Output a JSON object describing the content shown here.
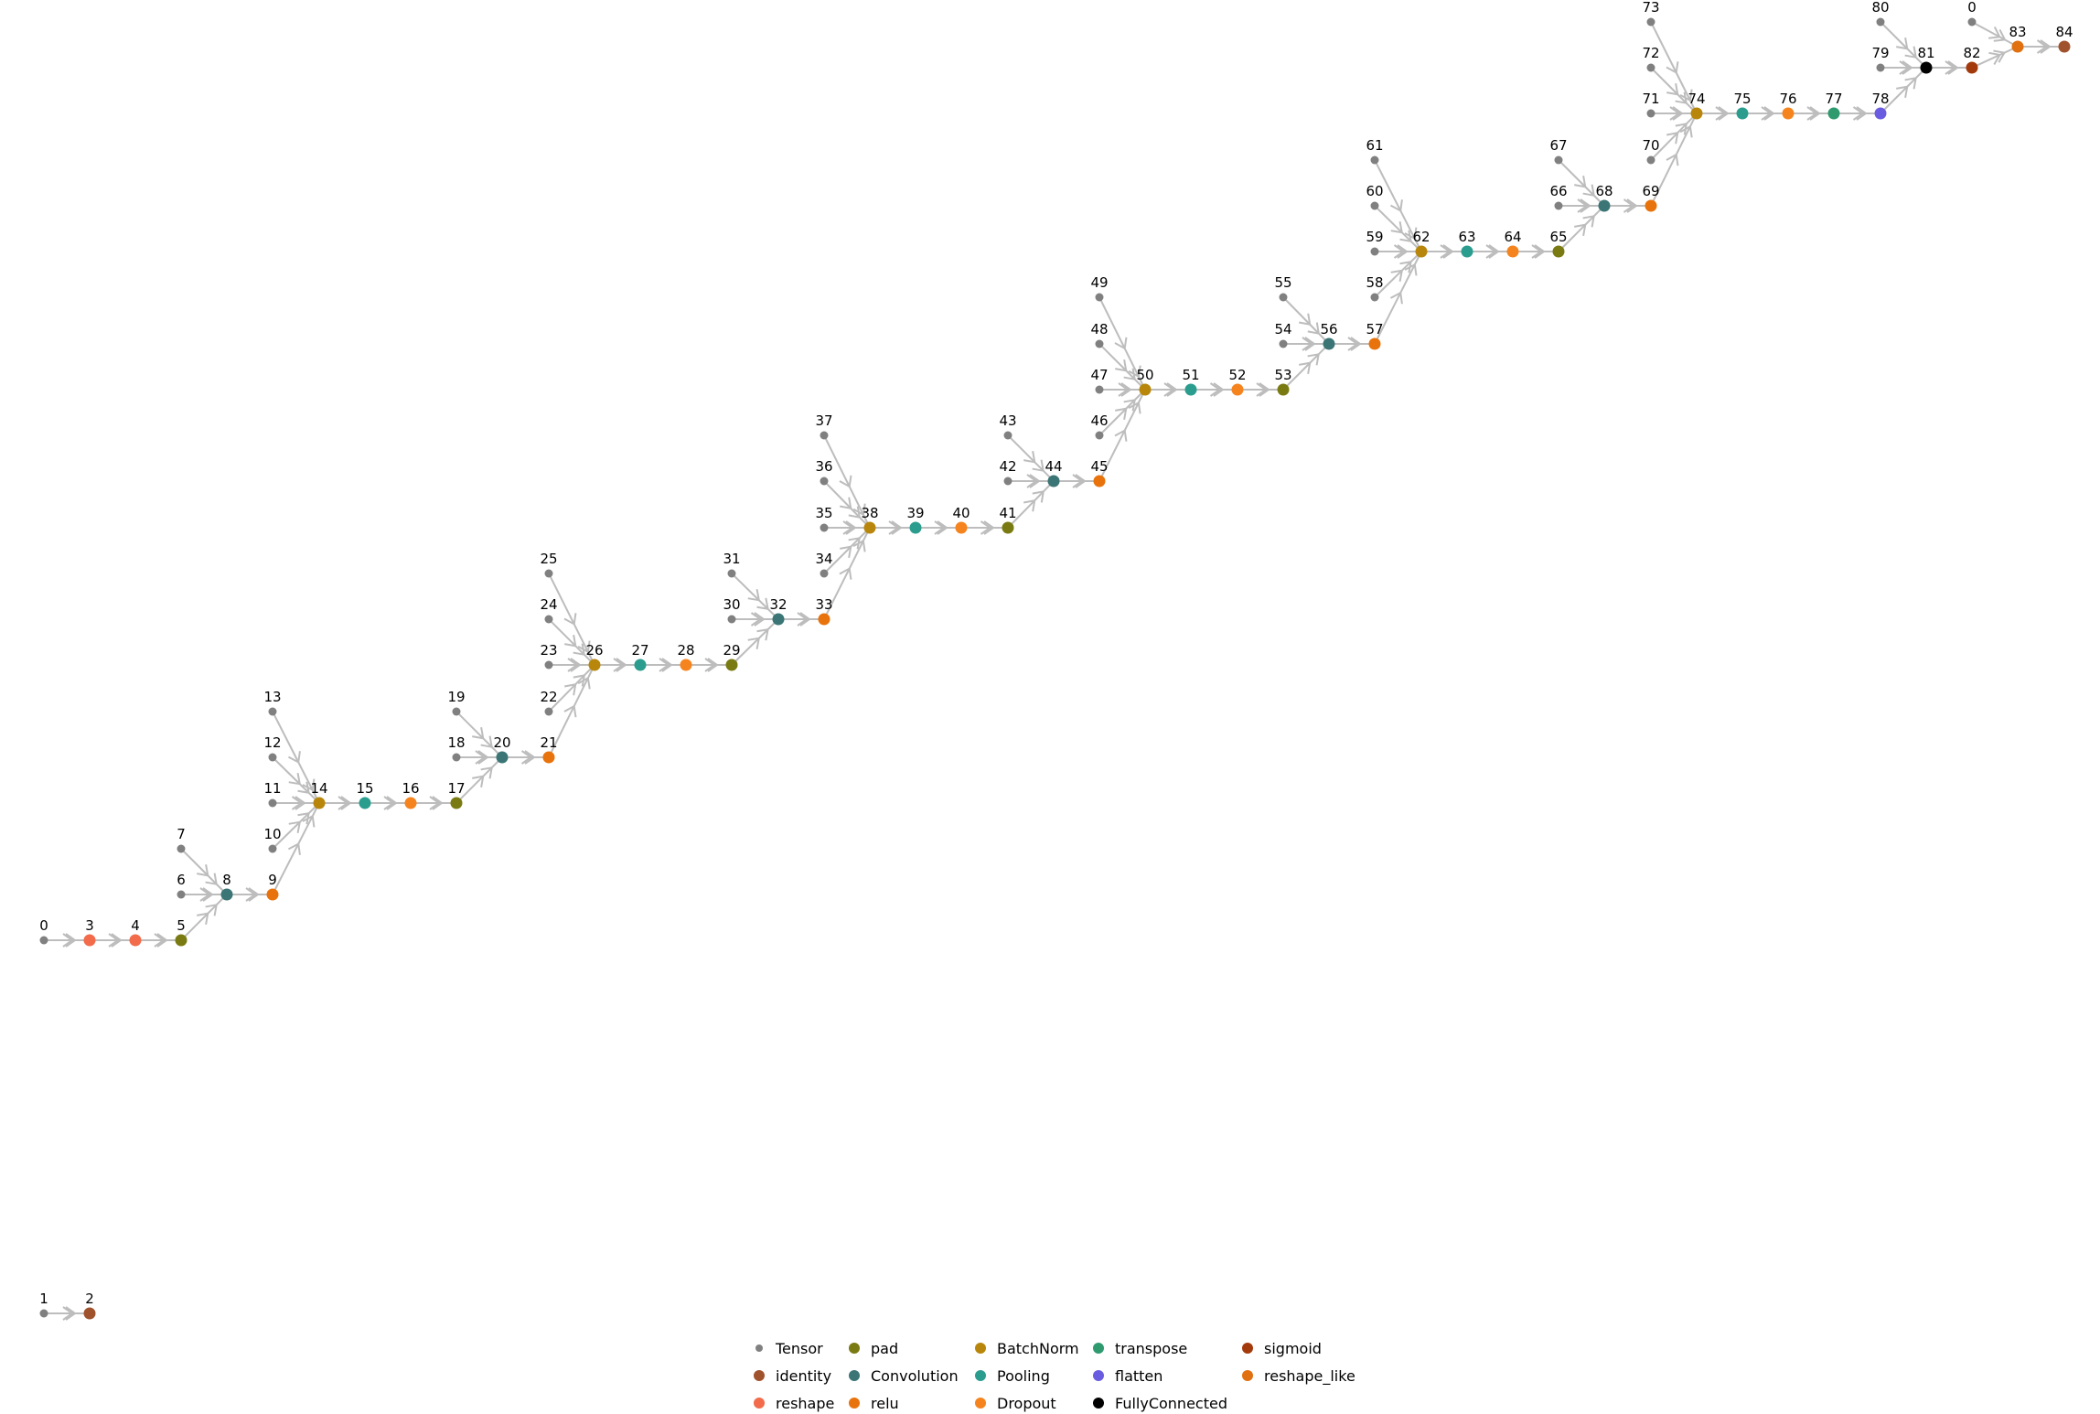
{
  "diagram": {
    "type": "directed-graph",
    "legend": [
      {
        "name": "Tensor",
        "color": "#808080"
      },
      {
        "name": "identity",
        "color": "#a0522d"
      },
      {
        "name": "reshape",
        "color": "#f26b4a"
      },
      {
        "name": "pad",
        "color": "#7a7a12"
      },
      {
        "name": "Convolution",
        "color": "#3b7575"
      },
      {
        "name": "relu",
        "color": "#e8730c"
      },
      {
        "name": "BatchNorm",
        "color": "#b8860b"
      },
      {
        "name": "Pooling",
        "color": "#2a9d8f"
      },
      {
        "name": "Dropout",
        "color": "#f5841f"
      },
      {
        "name": "transpose",
        "color": "#2e9a6e"
      },
      {
        "name": "flatten",
        "color": "#6a5ce0"
      },
      {
        "name": "FullyConnected",
        "color": "#000000"
      },
      {
        "name": "sigmoid",
        "color": "#a33a0c"
      },
      {
        "name": "reshape_like",
        "color": "#e07010"
      }
    ],
    "nodes": [
      {
        "id": "0a",
        "label": "0",
        "type": "Tensor"
      },
      {
        "id": "3",
        "label": "3",
        "type": "reshape"
      },
      {
        "id": "4",
        "label": "4",
        "type": "reshape"
      },
      {
        "id": "5",
        "label": "5",
        "type": "pad"
      },
      {
        "id": "6",
        "label": "6",
        "type": "Tensor"
      },
      {
        "id": "7",
        "label": "7",
        "type": "Tensor"
      },
      {
        "id": "8",
        "label": "8",
        "type": "Convolution"
      },
      {
        "id": "9",
        "label": "9",
        "type": "relu"
      },
      {
        "id": "10",
        "label": "10",
        "type": "Tensor"
      },
      {
        "id": "11",
        "label": "11",
        "type": "Tensor"
      },
      {
        "id": "12",
        "label": "12",
        "type": "Tensor"
      },
      {
        "id": "13",
        "label": "13",
        "type": "Tensor"
      },
      {
        "id": "14",
        "label": "14",
        "type": "BatchNorm"
      },
      {
        "id": "15",
        "label": "15",
        "type": "Pooling"
      },
      {
        "id": "16",
        "label": "16",
        "type": "Dropout"
      },
      {
        "id": "17",
        "label": "17",
        "type": "pad"
      },
      {
        "id": "18",
        "label": "18",
        "type": "Tensor"
      },
      {
        "id": "19",
        "label": "19",
        "type": "Tensor"
      },
      {
        "id": "20",
        "label": "20",
        "type": "Convolution"
      },
      {
        "id": "21",
        "label": "21",
        "type": "relu"
      },
      {
        "id": "22",
        "label": "22",
        "type": "Tensor"
      },
      {
        "id": "23",
        "label": "23",
        "type": "Tensor"
      },
      {
        "id": "24",
        "label": "24",
        "type": "Tensor"
      },
      {
        "id": "25",
        "label": "25",
        "type": "Tensor"
      },
      {
        "id": "26",
        "label": "26",
        "type": "BatchNorm"
      },
      {
        "id": "27",
        "label": "27",
        "type": "Pooling"
      },
      {
        "id": "28",
        "label": "28",
        "type": "Dropout"
      },
      {
        "id": "29",
        "label": "29",
        "type": "pad"
      },
      {
        "id": "30",
        "label": "30",
        "type": "Tensor"
      },
      {
        "id": "31",
        "label": "31",
        "type": "Tensor"
      },
      {
        "id": "32",
        "label": "32",
        "type": "Convolution"
      },
      {
        "id": "33",
        "label": "33",
        "type": "relu"
      },
      {
        "id": "34",
        "label": "34",
        "type": "Tensor"
      },
      {
        "id": "35",
        "label": "35",
        "type": "Tensor"
      },
      {
        "id": "36",
        "label": "36",
        "type": "Tensor"
      },
      {
        "id": "37",
        "label": "37",
        "type": "Tensor"
      },
      {
        "id": "38",
        "label": "38",
        "type": "BatchNorm"
      },
      {
        "id": "39",
        "label": "39",
        "type": "Pooling"
      },
      {
        "id": "40",
        "label": "40",
        "type": "Dropout"
      },
      {
        "id": "41",
        "label": "41",
        "type": "pad"
      },
      {
        "id": "42",
        "label": "42",
        "type": "Tensor"
      },
      {
        "id": "43",
        "label": "43",
        "type": "Tensor"
      },
      {
        "id": "44",
        "label": "44",
        "type": "Convolution"
      },
      {
        "id": "45",
        "label": "45",
        "type": "relu"
      },
      {
        "id": "46",
        "label": "46",
        "type": "Tensor"
      },
      {
        "id": "47",
        "label": "47",
        "type": "Tensor"
      },
      {
        "id": "48",
        "label": "48",
        "type": "Tensor"
      },
      {
        "id": "49",
        "label": "49",
        "type": "Tensor"
      },
      {
        "id": "50",
        "label": "50",
        "type": "BatchNorm"
      },
      {
        "id": "51",
        "label": "51",
        "type": "Pooling"
      },
      {
        "id": "52",
        "label": "52",
        "type": "Dropout"
      },
      {
        "id": "53",
        "label": "53",
        "type": "pad"
      },
      {
        "id": "54",
        "label": "54",
        "type": "Tensor"
      },
      {
        "id": "55",
        "label": "55",
        "type": "Tensor"
      },
      {
        "id": "56",
        "label": "56",
        "type": "Convolution"
      },
      {
        "id": "57",
        "label": "57",
        "type": "relu"
      },
      {
        "id": "58",
        "label": "58",
        "type": "Tensor"
      },
      {
        "id": "59",
        "label": "59",
        "type": "Tensor"
      },
      {
        "id": "60",
        "label": "60",
        "type": "Tensor"
      },
      {
        "id": "61",
        "label": "61",
        "type": "Tensor"
      },
      {
        "id": "62",
        "label": "62",
        "type": "BatchNorm"
      },
      {
        "id": "63",
        "label": "63",
        "type": "Pooling"
      },
      {
        "id": "64",
        "label": "64",
        "type": "Dropout"
      },
      {
        "id": "65",
        "label": "65",
        "type": "pad"
      },
      {
        "id": "66",
        "label": "66",
        "type": "Tensor"
      },
      {
        "id": "67",
        "label": "67",
        "type": "Tensor"
      },
      {
        "id": "68",
        "label": "68",
        "type": "Convolution"
      },
      {
        "id": "69",
        "label": "69",
        "type": "relu"
      },
      {
        "id": "70",
        "label": "70",
        "type": "Tensor"
      },
      {
        "id": "71",
        "label": "71",
        "type": "Tensor"
      },
      {
        "id": "72",
        "label": "72",
        "type": "Tensor"
      },
      {
        "id": "73",
        "label": "73",
        "type": "Tensor"
      },
      {
        "id": "74",
        "label": "74",
        "type": "BatchNorm"
      },
      {
        "id": "75",
        "label": "75",
        "type": "Pooling"
      },
      {
        "id": "76",
        "label": "76",
        "type": "Dropout"
      },
      {
        "id": "77",
        "label": "77",
        "type": "transpose"
      },
      {
        "id": "78",
        "label": "78",
        "type": "flatten"
      },
      {
        "id": "79",
        "label": "79",
        "type": "Tensor"
      },
      {
        "id": "80",
        "label": "80",
        "type": "Tensor"
      },
      {
        "id": "81",
        "label": "81",
        "type": "FullyConnected"
      },
      {
        "id": "82",
        "label": "82",
        "type": "sigmoid"
      },
      {
        "id": "0b",
        "label": "0",
        "type": "Tensor"
      },
      {
        "id": "83",
        "label": "83",
        "type": "reshape_like"
      },
      {
        "id": "84",
        "label": "84",
        "type": "identity"
      },
      {
        "id": "1",
        "label": "1",
        "type": "Tensor"
      },
      {
        "id": "2",
        "label": "2",
        "type": "identity"
      }
    ],
    "edges": [
      [
        "0a",
        "3"
      ],
      [
        "3",
        "4"
      ],
      [
        "4",
        "5"
      ],
      [
        "5",
        "8"
      ],
      [
        "6",
        "8"
      ],
      [
        "7",
        "8"
      ],
      [
        "8",
        "9"
      ],
      [
        "9",
        "14"
      ],
      [
        "10",
        "14"
      ],
      [
        "11",
        "14"
      ],
      [
        "12",
        "14"
      ],
      [
        "13",
        "14"
      ],
      [
        "14",
        "15"
      ],
      [
        "15",
        "16"
      ],
      [
        "16",
        "17"
      ],
      [
        "17",
        "20"
      ],
      [
        "18",
        "20"
      ],
      [
        "19",
        "20"
      ],
      [
        "20",
        "21"
      ],
      [
        "21",
        "26"
      ],
      [
        "22",
        "26"
      ],
      [
        "23",
        "26"
      ],
      [
        "24",
        "26"
      ],
      [
        "25",
        "26"
      ],
      [
        "26",
        "27"
      ],
      [
        "27",
        "28"
      ],
      [
        "28",
        "29"
      ],
      [
        "29",
        "32"
      ],
      [
        "30",
        "32"
      ],
      [
        "31",
        "32"
      ],
      [
        "32",
        "33"
      ],
      [
        "33",
        "38"
      ],
      [
        "34",
        "38"
      ],
      [
        "35",
        "38"
      ],
      [
        "36",
        "38"
      ],
      [
        "37",
        "38"
      ],
      [
        "38",
        "39"
      ],
      [
        "39",
        "40"
      ],
      [
        "40",
        "41"
      ],
      [
        "41",
        "44"
      ],
      [
        "42",
        "44"
      ],
      [
        "43",
        "44"
      ],
      [
        "44",
        "45"
      ],
      [
        "45",
        "50"
      ],
      [
        "46",
        "50"
      ],
      [
        "47",
        "50"
      ],
      [
        "48",
        "50"
      ],
      [
        "49",
        "50"
      ],
      [
        "50",
        "51"
      ],
      [
        "51",
        "52"
      ],
      [
        "52",
        "53"
      ],
      [
        "53",
        "56"
      ],
      [
        "54",
        "56"
      ],
      [
        "55",
        "56"
      ],
      [
        "56",
        "57"
      ],
      [
        "57",
        "62"
      ],
      [
        "58",
        "62"
      ],
      [
        "59",
        "62"
      ],
      [
        "60",
        "62"
      ],
      [
        "61",
        "62"
      ],
      [
        "62",
        "63"
      ],
      [
        "63",
        "64"
      ],
      [
        "64",
        "65"
      ],
      [
        "65",
        "68"
      ],
      [
        "66",
        "68"
      ],
      [
        "67",
        "68"
      ],
      [
        "68",
        "69"
      ],
      [
        "69",
        "74"
      ],
      [
        "70",
        "74"
      ],
      [
        "71",
        "74"
      ],
      [
        "72",
        "74"
      ],
      [
        "73",
        "74"
      ],
      [
        "74",
        "75"
      ],
      [
        "75",
        "76"
      ],
      [
        "76",
        "77"
      ],
      [
        "77",
        "78"
      ],
      [
        "78",
        "81"
      ],
      [
        "79",
        "81"
      ],
      [
        "80",
        "81"
      ],
      [
        "81",
        "82"
      ],
      [
        "82",
        "83"
      ],
      [
        "0b",
        "83"
      ],
      [
        "83",
        "84"
      ],
      [
        "1",
        "2"
      ]
    ]
  }
}
